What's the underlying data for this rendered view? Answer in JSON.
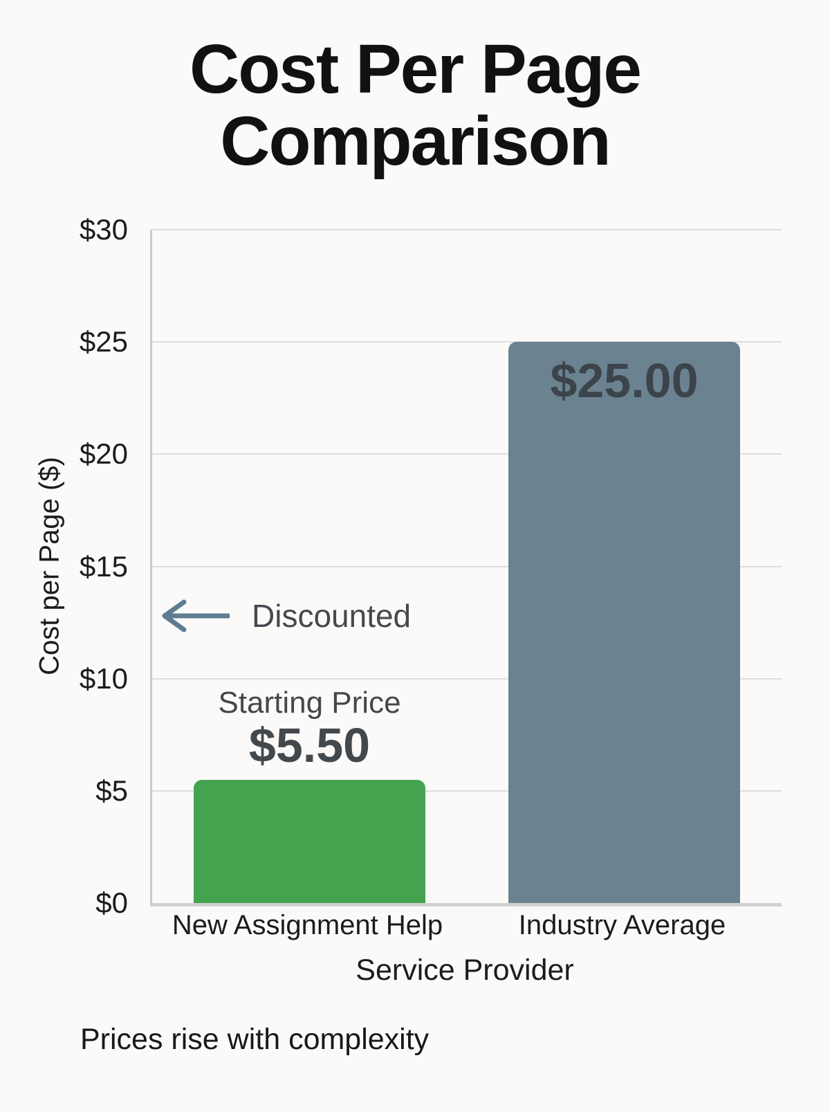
{
  "page": {
    "background": "#fbfaf8",
    "footer_note": "Prices rise with complexity"
  },
  "chart_data": {
    "type": "bar",
    "title": "Cost Per Page Comparison",
    "title_lines": [
      "Cost Per Page",
      "Comparison"
    ],
    "categories": [
      "New Assignment Help",
      "Industry Average"
    ],
    "values": [
      5.5,
      25.0
    ],
    "bar_colors": [
      "#44a34e",
      "#6b8290"
    ],
    "xlabel": "Service Provider",
    "ylabel": "Cost per Page ($)",
    "ylim": [
      0,
      30
    ],
    "grid": true,
    "legend_position": "none",
    "yticks": [
      {
        "value": 0,
        "label": "$0"
      },
      {
        "value": 5,
        "label": "$5"
      },
      {
        "value": 10,
        "label": "$10"
      },
      {
        "value": 15,
        "label": "$15"
      },
      {
        "value": 20,
        "label": "$20"
      },
      {
        "value": 25,
        "label": "$25"
      },
      {
        "value": 30,
        "label": "$30"
      }
    ],
    "annotations": [
      {
        "type": "arrow-label",
        "text": "Discounted",
        "y_value": 12.8,
        "arrow_color": "#5e7d92",
        "text_color": "#45494e"
      },
      {
        "type": "above-bar-label",
        "bar_index": 0,
        "line1": "Starting Price",
        "line2": "$5.50",
        "color": "#43484d"
      },
      {
        "type": "in-bar-label",
        "bar_index": 1,
        "text": "$25.00",
        "color": "#3c444b"
      }
    ]
  }
}
